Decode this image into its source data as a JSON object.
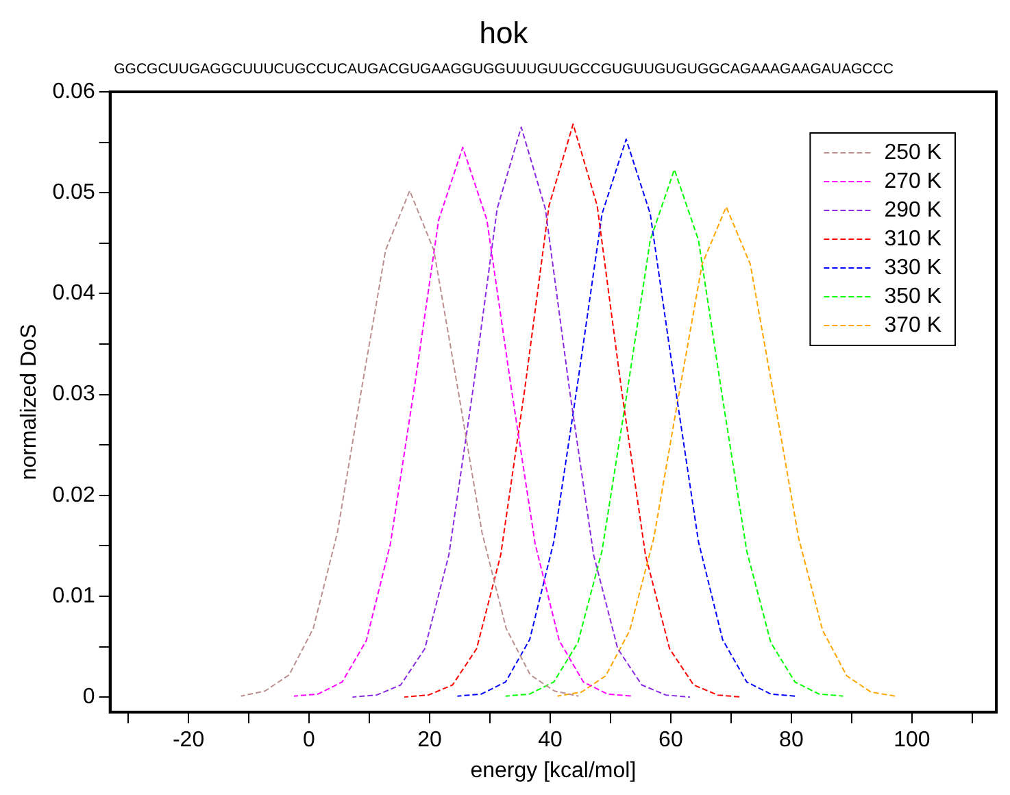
{
  "chart_data": {
    "type": "line",
    "title": "hok",
    "subtitle": "GGCGCUUGAGGCUUUCUGCCUCAUGACGUGAAGGUGGUUUGUUGCCGUGUUGUGUGGCAGAAAGAAGAUAGCCC",
    "xlabel": "energy [kcal/mol]",
    "ylabel": "normalized DoS",
    "xlim": [
      -33,
      114
    ],
    "ylim": [
      -0.0015,
      0.06
    ],
    "xticks": [
      {
        "value": -30,
        "label": null
      },
      -20,
      {
        "value": -10,
        "label": null
      },
      0,
      {
        "value": 10,
        "label": null
      },
      20,
      {
        "value": 30,
        "label": null
      },
      40,
      {
        "value": 50,
        "label": null
      },
      60,
      {
        "value": 70,
        "label": null
      },
      80,
      {
        "value": 90,
        "label": null
      },
      100,
      {
        "value": 110,
        "label": null
      }
    ],
    "yticks": [
      0,
      {
        "value": 0.005,
        "label": null
      },
      0.01,
      {
        "value": 0.015,
        "label": null
      },
      0.02,
      {
        "value": 0.025,
        "label": null
      },
      0.03,
      {
        "value": 0.035,
        "label": null
      },
      0.04,
      {
        "value": 0.045,
        "label": null
      },
      0.05,
      {
        "value": 0.055,
        "label": null
      },
      0.06
    ],
    "legend": "top right",
    "marker": "none",
    "line_style": "dashed",
    "series": [
      {
        "name": "250 K",
        "color": "#bc8f8f",
        "x": [
          -11.3,
          -7.3,
          -3.3,
          0.7,
          4.7,
          8.7,
          12.7,
          16.7,
          20.7,
          24.7,
          28.7,
          32.7,
          36.7,
          40.7,
          44.7
        ],
        "values": [
          0.0001,
          0.0006,
          0.0022,
          0.0068,
          0.0163,
          0.0305,
          0.0443,
          0.0502,
          0.0443,
          0.0305,
          0.0163,
          0.0068,
          0.0022,
          0.0006,
          0.0001
        ]
      },
      {
        "name": "270 K",
        "color": "#ff00ff",
        "x": [
          -2.5,
          1.5,
          5.5,
          9.5,
          13.5,
          17.5,
          21.5,
          25.5,
          29.5,
          33.5,
          37.5,
          41.5,
          45.5,
          49.5,
          53.5
        ],
        "values": [
          0.0001,
          0.0003,
          0.0015,
          0.0056,
          0.0152,
          0.0308,
          0.0473,
          0.0545,
          0.0473,
          0.0308,
          0.0152,
          0.0056,
          0.0015,
          0.0003,
          0.0001
        ]
      },
      {
        "name": "290 K",
        "color": "#8a2be2",
        "x": [
          7.2,
          11.2,
          15.2,
          19.2,
          23.2,
          27.2,
          31.2,
          35.2,
          39.2,
          43.2,
          47.2,
          51.2,
          55.2,
          59.2,
          63.2
        ],
        "values": [
          0,
          0.0002,
          0.0012,
          0.0048,
          0.0141,
          0.0305,
          0.0484,
          0.0565,
          0.0484,
          0.0305,
          0.0141,
          0.0048,
          0.0012,
          0.0002,
          0
        ]
      },
      {
        "name": "310 K",
        "color": "#ff0000",
        "x": [
          15.8,
          19.8,
          23.8,
          27.8,
          31.8,
          35.8,
          39.8,
          43.8,
          47.8,
          51.8,
          55.8,
          59.8,
          63.8,
          67.8,
          71.8
        ],
        "values": [
          0,
          0.0002,
          0.0012,
          0.0048,
          0.0141,
          0.0306,
          0.0487,
          0.0568,
          0.0487,
          0.0306,
          0.0141,
          0.0048,
          0.0012,
          0.0002,
          0
        ]
      },
      {
        "name": "330 K",
        "color": "#0000ff",
        "x": [
          24.6,
          28.6,
          32.6,
          36.6,
          40.6,
          44.6,
          48.6,
          52.6,
          56.6,
          60.6,
          64.6,
          68.6,
          72.6,
          76.6,
          80.6
        ],
        "values": [
          0.0001,
          0.0003,
          0.0015,
          0.0057,
          0.0154,
          0.0313,
          0.0479,
          0.0553,
          0.0479,
          0.0313,
          0.0154,
          0.0057,
          0.0015,
          0.0003,
          0.0001
        ]
      },
      {
        "name": "350 K",
        "color": "#00ff00",
        "x": [
          32.6,
          36.6,
          40.6,
          44.6,
          48.6,
          52.6,
          56.6,
          60.6,
          64.6,
          68.6,
          72.6,
          76.6,
          80.6,
          84.6,
          88.6
        ],
        "values": [
          0.0001,
          0.0003,
          0.0015,
          0.0054,
          0.0145,
          0.0296,
          0.0453,
          0.0523,
          0.0453,
          0.0296,
          0.0145,
          0.0054,
          0.0015,
          0.0003,
          0.0001
        ]
      },
      {
        "name": "370 K",
        "color": "#ffa500",
        "x": [
          41.2,
          45.2,
          49.2,
          53.2,
          57.2,
          61.2,
          65.2,
          69.2,
          73.2,
          77.2,
          81.2,
          85.2,
          89.2,
          93.2,
          97.2
        ],
        "values": [
          0.0001,
          0.0005,
          0.0021,
          0.0066,
          0.0158,
          0.0295,
          0.0429,
          0.0486,
          0.0429,
          0.0295,
          0.0158,
          0.0066,
          0.0021,
          0.0005,
          0.0001
        ]
      }
    ]
  }
}
